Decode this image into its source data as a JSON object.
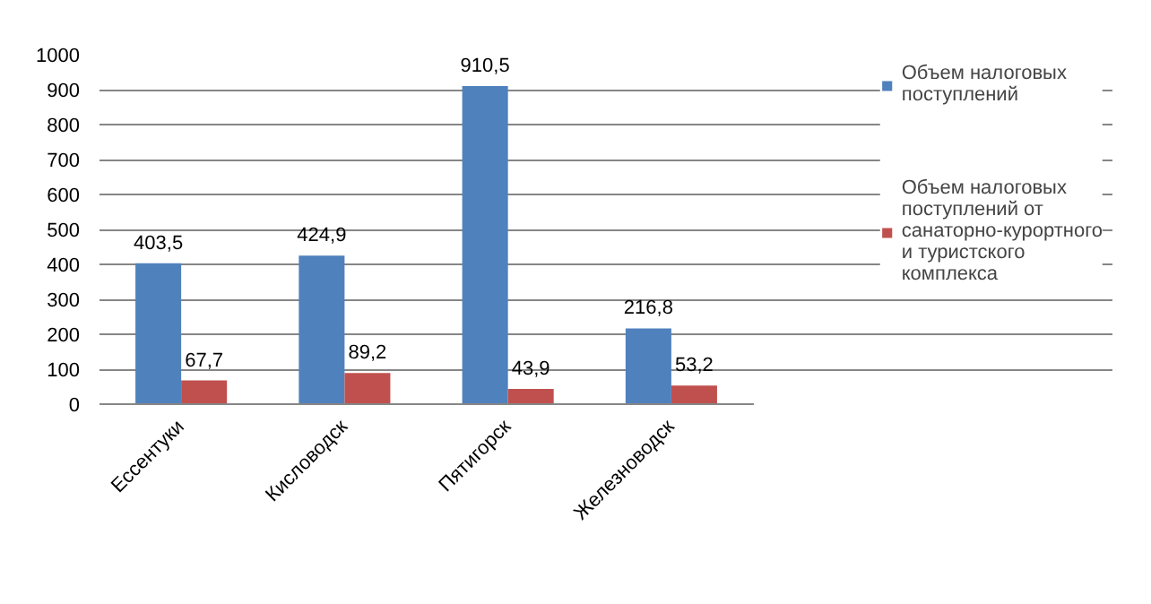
{
  "chart_data": {
    "type": "bar",
    "categories": [
      "Ессентуки",
      "Кисловодск",
      "Пятигорск",
      "Железноводск"
    ],
    "series": [
      {
        "name": "Объем налоговых поступлений",
        "color": "#4f81bd",
        "values": [
          403.5,
          424.9,
          910.5,
          216.8
        ],
        "value_labels": [
          "403,5",
          "424,9",
          "910,5",
          "216,8"
        ]
      },
      {
        "name": "Объем налоговых поступлений от санаторно-курортного и туристского комплекса",
        "color": "#c0504d",
        "values": [
          67.7,
          89.2,
          43.9,
          53.2
        ],
        "value_labels": [
          "67,7",
          "89,2",
          "43,9",
          "53,2"
        ]
      }
    ],
    "ylim": [
      0,
      1000
    ],
    "yticks": [
      0,
      100,
      200,
      300,
      400,
      500,
      600,
      700,
      800,
      900,
      1000
    ],
    "grid": "y",
    "legend": "right"
  }
}
